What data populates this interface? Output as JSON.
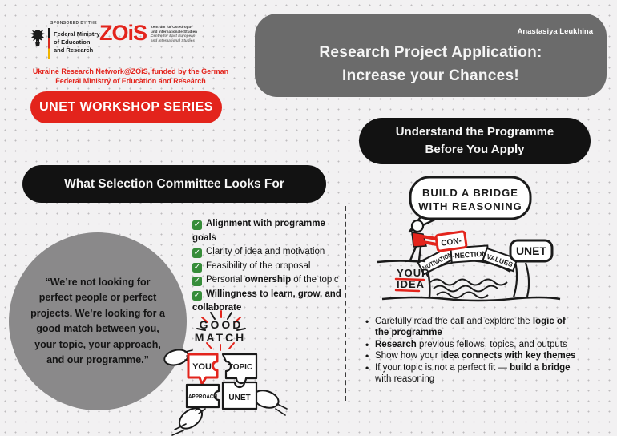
{
  "colors": {
    "background": "#f2f1f2",
    "dot_grid": "#bdbcbd",
    "accent_red": "#e3241c",
    "dark_box": "#121212",
    "title_box_gray": "#6b6b6b",
    "quote_circle_gray": "#8a898a",
    "check_green": "#368c39",
    "text_black": "#1c1c1c"
  },
  "header": {
    "author": "Anastasiya Leukhina",
    "title_line1": "Research Project Application:",
    "title_line2": "Increase your Chances!",
    "series_badge": "UNET WORKSHOP SERIES",
    "sponsored_by": "SPONSORED BY THE",
    "ministry_lines": [
      "Federal Ministry",
      "of Education",
      "and Research"
    ],
    "zois_wordmark": "ZOiS",
    "zois_tagline_lines": [
      "Zentrum für Osteuropa-",
      "und internationale Studien",
      "Centre for East European",
      "and International Studies"
    ],
    "funding_note_line1": "Ukraine Research Network@ZOiS, funded by the German",
    "funding_note_line2": "Federal Ministry of Education and Research"
  },
  "left_section": {
    "heading": "What Selection Committee Looks For",
    "quote_lines": [
      "“We’re not looking for",
      "perfect people or perfect",
      "projects. We’re looking for a",
      "good match between you,",
      "your topic, your approach,",
      "and our programme.”"
    ],
    "checklist": [
      {
        "lines": [
          [
            {
              "t": "Alignment with programme",
              "b": true
            }
          ],
          [
            {
              "t": "goals",
              "b": true
            }
          ]
        ]
      },
      {
        "lines": [
          [
            {
              "t": "Clarity of idea and motivation",
              "b": false
            }
          ]
        ]
      },
      {
        "lines": [
          [
            {
              "t": "Feasibility of the proposal",
              "b": false
            }
          ]
        ]
      },
      {
        "lines": [
          [
            {
              "t": "Personal ",
              "b": false
            },
            {
              "t": "ownership",
              "b": true
            },
            {
              "t": " of the topic",
              "b": false
            }
          ]
        ]
      },
      {
        "lines": [
          [
            {
              "t": "Willingness to learn, grow, and",
              "b": true
            }
          ],
          [
            {
              "t": "collaborate",
              "b": true
            }
          ]
        ]
      }
    ],
    "puzzle": {
      "caption_line1": "GOOD",
      "caption_line2": "MATCH",
      "piece_you": "YOU",
      "piece_topic": "TOPIC",
      "piece_approach": "APPROACH",
      "piece_unet": "UNET"
    }
  },
  "right_section": {
    "heading_line1": "Understand the Programme",
    "heading_line2": "Before You Apply",
    "bridge": {
      "speech_line1": "BUILD A BRIDGE",
      "speech_line2": "WITH REASONING",
      "held_block": "CON-",
      "stone1": "MOTIVATION",
      "stone2": "-NECTION",
      "stone3": "VALUES",
      "right_sign": "UNET",
      "left_label_line1": "YOUR",
      "left_label_line2": "IDEA"
    },
    "bullets": [
      {
        "lines": [
          [
            {
              "t": "Carefully read the call and explore the ",
              "b": false
            },
            {
              "t": "logic of",
              "b": true
            }
          ],
          [
            {
              "t": "the programme",
              "b": true
            }
          ]
        ]
      },
      {
        "lines": [
          [
            {
              "t": "Research",
              "b": true
            },
            {
              "t": " previous fellows, topics, and outputs",
              "b": false
            }
          ]
        ]
      },
      {
        "lines": [
          [
            {
              "t": "Show how your ",
              "b": false
            },
            {
              "t": "idea connects with key themes",
              "b": true
            }
          ]
        ]
      },
      {
        "lines": [
          [
            {
              "t": " If your topic is not a perfect fit — ",
              "b": false
            },
            {
              "t": "build a bridge",
              "b": true
            }
          ],
          [
            {
              "t": "with reasoning",
              "b": false
            }
          ]
        ]
      }
    ]
  }
}
